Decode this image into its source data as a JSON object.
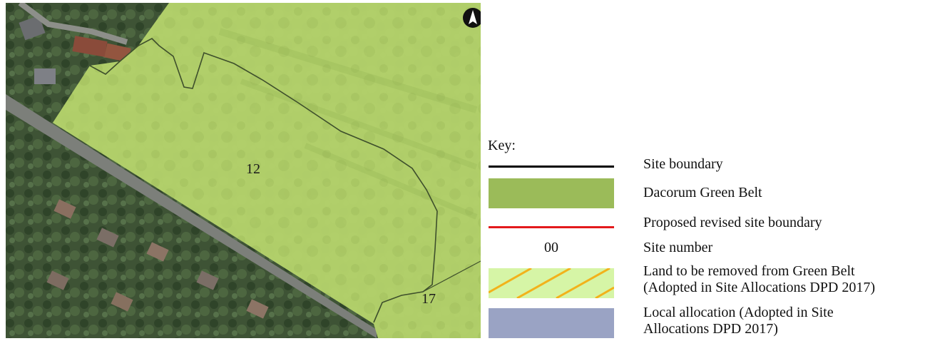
{
  "map": {
    "site_labels": [
      "12",
      "17"
    ],
    "north_arrow": "north-arrow-icon",
    "attribution": "",
    "colors": {
      "green_belt_overlay": "#b9dc6a",
      "aerial_dark": "#3f5237",
      "road": "#7c7f7a"
    }
  },
  "legend": {
    "title": "Key:",
    "items": [
      {
        "symbol": "black-line",
        "label": "Site boundary",
        "color": "#000000"
      },
      {
        "symbol": "green-fill",
        "label": "Dacorum Green Belt",
        "color": "#9bbb59"
      },
      {
        "symbol": "red-line",
        "label": "Proposed revised site boundary",
        "color": "#e31a1c"
      },
      {
        "symbol": "number",
        "sample": "00",
        "label": "Site number"
      },
      {
        "symbol": "hatch",
        "label_lines": [
          "Land to be removed from Green Belt",
          "(Adopted in Site Allocations DPD 2017)"
        ],
        "color": "#d6f5a6",
        "hatch_color": "#f2b21b"
      },
      {
        "symbol": "blue-fill",
        "label_lines": [
          "Local allocation (Adopted in Site",
          "Allocations DPD 2017)"
        ],
        "color": "#9aa3c4"
      }
    ]
  }
}
